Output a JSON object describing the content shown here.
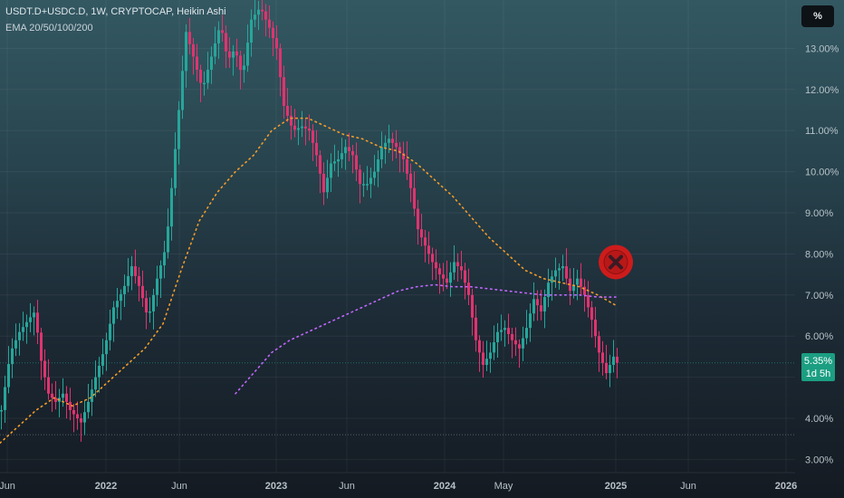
{
  "header": {
    "symbol_line": "USDT.D+USDC.D, 1W, CRYPTOCAP, Heikin Ashi",
    "indicator_line": "EMA 20/50/100/200"
  },
  "scale_button": {
    "label": "%"
  },
  "price_badge": {
    "value": "5.35%",
    "countdown": "1d 5h"
  },
  "colors": {
    "up": "#26a69a",
    "down": "#e0336f",
    "ema_orange": "#f39c2a",
    "ema_purple": "#c266ff",
    "marker": "#cc1c1c",
    "badge": "#1b9e82"
  },
  "chart_data": {
    "type": "candlestick",
    "style": "Heikin Ashi",
    "interval": "1W",
    "x_tick_labels": [
      "Jun",
      "2022",
      "Jun",
      "2023",
      "Jun",
      "2024",
      "May",
      "2025",
      "Jun",
      "2026"
    ],
    "y_tick_labels": [
      "3.00%",
      "4.00%",
      "5.00%",
      "6.00%",
      "7.00%",
      "8.00%",
      "9.00%",
      "10.00%",
      "11.00%",
      "12.00%",
      "13.00%"
    ],
    "ylim": [
      2.7,
      14.1
    ],
    "grid": true,
    "current_value": 5.35,
    "guide_line": 3.6,
    "price_path": [
      [
        0,
        4.2
      ],
      [
        10,
        5.6
      ],
      [
        20,
        6.1
      ],
      [
        30,
        6.4
      ],
      [
        37,
        6.6
      ],
      [
        44,
        5.4
      ],
      [
        52,
        4.6
      ],
      [
        60,
        4.4
      ],
      [
        68,
        4.6
      ],
      [
        76,
        4.2
      ],
      [
        88,
        3.9
      ],
      [
        96,
        4.4
      ],
      [
        104,
        5.0
      ],
      [
        114,
        5.7
      ],
      [
        124,
        6.7
      ],
      [
        134,
        7.1
      ],
      [
        144,
        7.7
      ],
      [
        154,
        7.1
      ],
      [
        162,
        6.4
      ],
      [
        172,
        7.4
      ],
      [
        182,
        8.2
      ],
      [
        188,
        9.6
      ],
      [
        196,
        11.5
      ],
      [
        204,
        13.4
      ],
      [
        212,
        12.8
      ],
      [
        222,
        12.0
      ],
      [
        232,
        12.8
      ],
      [
        242,
        13.6
      ],
      [
        250,
        12.7
      ],
      [
        258,
        13.0
      ],
      [
        266,
        12.3
      ],
      [
        276,
        13.7
      ],
      [
        286,
        14.0
      ],
      [
        296,
        13.5
      ],
      [
        304,
        13.0
      ],
      [
        312,
        11.6
      ],
      [
        322,
        11.0
      ],
      [
        332,
        11.1
      ],
      [
        340,
        11.0
      ],
      [
        348,
        10.4
      ],
      [
        356,
        9.5
      ],
      [
        364,
        10.2
      ],
      [
        372,
        10.3
      ],
      [
        380,
        10.6
      ],
      [
        388,
        10.4
      ],
      [
        396,
        9.7
      ],
      [
        404,
        9.7
      ],
      [
        412,
        10.0
      ],
      [
        420,
        10.6
      ],
      [
        428,
        10.8
      ],
      [
        436,
        10.6
      ],
      [
        444,
        10.3
      ],
      [
        452,
        9.6
      ],
      [
        460,
        8.6
      ],
      [
        468,
        8.2
      ],
      [
        476,
        7.8
      ],
      [
        484,
        7.5
      ],
      [
        492,
        7.3
      ],
      [
        500,
        7.8
      ],
      [
        508,
        7.6
      ],
      [
        516,
        7.0
      ],
      [
        524,
        5.9
      ],
      [
        532,
        5.3
      ],
      [
        540,
        5.6
      ],
      [
        548,
        6.1
      ],
      [
        556,
        6.2
      ],
      [
        564,
        5.9
      ],
      [
        572,
        5.7
      ],
      [
        580,
        6.2
      ],
      [
        588,
        6.9
      ],
      [
        596,
        6.6
      ],
      [
        604,
        7.3
      ],
      [
        612,
        7.6
      ],
      [
        620,
        7.7
      ],
      [
        628,
        7.1
      ],
      [
        636,
        7.4
      ],
      [
        644,
        7.0
      ],
      [
        652,
        6.4
      ],
      [
        660,
        5.6
      ],
      [
        668,
        5.1
      ],
      [
        676,
        5.5
      ],
      [
        680,
        5.35
      ]
    ],
    "ema_orange": [
      [
        0,
        3.4
      ],
      [
        20,
        3.8
      ],
      [
        40,
        4.2
      ],
      [
        60,
        4.5
      ],
      [
        80,
        4.3
      ],
      [
        100,
        4.5
      ],
      [
        120,
        4.9
      ],
      [
        140,
        5.3
      ],
      [
        160,
        5.7
      ],
      [
        180,
        6.3
      ],
      [
        200,
        7.6
      ],
      [
        220,
        8.8
      ],
      [
        240,
        9.5
      ],
      [
        260,
        10.0
      ],
      [
        280,
        10.4
      ],
      [
        300,
        11.0
      ],
      [
        320,
        11.3
      ],
      [
        340,
        11.3
      ],
      [
        360,
        11.1
      ],
      [
        380,
        10.9
      ],
      [
        400,
        10.8
      ],
      [
        420,
        10.6
      ],
      [
        440,
        10.5
      ],
      [
        460,
        10.2
      ],
      [
        480,
        9.8
      ],
      [
        500,
        9.4
      ],
      [
        520,
        8.9
      ],
      [
        540,
        8.4
      ],
      [
        560,
        8.0
      ],
      [
        580,
        7.6
      ],
      [
        600,
        7.4
      ],
      [
        620,
        7.3
      ],
      [
        640,
        7.2
      ],
      [
        660,
        7.0
      ],
      [
        680,
        6.75
      ]
    ],
    "ema_purple": [
      [
        260,
        4.6
      ],
      [
        280,
        5.1
      ],
      [
        300,
        5.6
      ],
      [
        320,
        5.9
      ],
      [
        340,
        6.1
      ],
      [
        360,
        6.3
      ],
      [
        380,
        6.5
      ],
      [
        400,
        6.7
      ],
      [
        420,
        6.9
      ],
      [
        440,
        7.1
      ],
      [
        460,
        7.2
      ],
      [
        480,
        7.25
      ],
      [
        500,
        7.2
      ],
      [
        520,
        7.2
      ],
      [
        540,
        7.15
      ],
      [
        560,
        7.1
      ],
      [
        580,
        7.05
      ],
      [
        600,
        7.0
      ],
      [
        620,
        7.0
      ],
      [
        640,
        7.0
      ],
      [
        660,
        6.95
      ],
      [
        680,
        6.95
      ]
    ],
    "annotations": [
      {
        "type": "x-marker",
        "x": 680,
        "y": 7.8
      }
    ]
  }
}
